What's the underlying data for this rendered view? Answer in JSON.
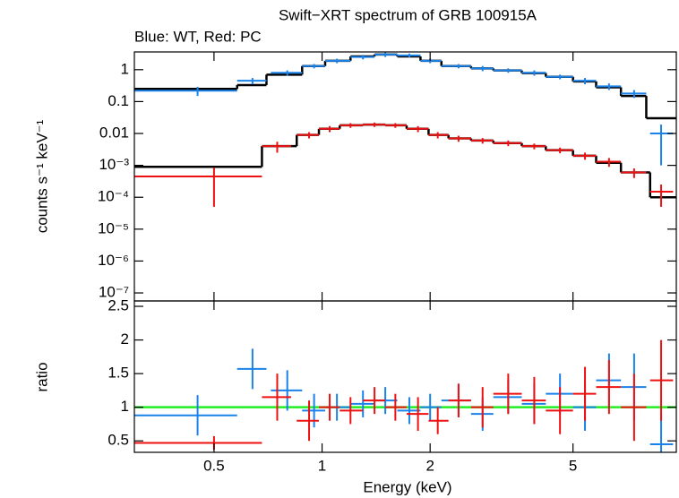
{
  "chart_data": [
    {
      "type": "spectrum",
      "title": "Swift−XRT spectrum of GRB 100915A",
      "subtitle": "Blue: WT, Red: PC",
      "ylabel": "counts s⁻¹ keV⁻¹",
      "xscale": "log",
      "yscale": "log",
      "xlim": [
        0.3,
        9.7
      ],
      "ylim": [
        5.6e-08,
        3.6
      ],
      "yticks": [
        {
          "value": 1,
          "label": "1"
        },
        {
          "value": 0.1,
          "label": "0.1"
        },
        {
          "value": 0.01,
          "label": "0.01"
        },
        {
          "value": 0.001,
          "label": "10⁻³"
        },
        {
          "value": 0.0001,
          "label": "10⁻⁴"
        },
        {
          "value": 1e-05,
          "label": "10⁻⁵"
        },
        {
          "value": 1e-06,
          "label": "10⁻⁶"
        },
        {
          "value": 1e-07,
          "label": "10⁻⁷"
        }
      ],
      "series": [
        {
          "name": "WT",
          "color": "#1a82e8",
          "x": [
            0.45,
            0.64,
            0.8,
            0.95,
            1.1,
            1.3,
            1.5,
            1.75,
            2.0,
            2.4,
            2.8,
            3.3,
            3.9,
            4.6,
            5.4,
            6.3,
            7.4,
            8.8
          ],
          "xlo": [
            0.3,
            0.58,
            0.72,
            0.88,
            1.02,
            1.2,
            1.4,
            1.62,
            1.88,
            2.15,
            2.6,
            3.0,
            3.6,
            4.2,
            5.0,
            5.8,
            6.8,
            8.2
          ],
          "xhi": [
            0.58,
            0.7,
            0.88,
            1.02,
            1.2,
            1.4,
            1.62,
            1.88,
            2.15,
            2.6,
            3.0,
            3.6,
            4.2,
            5.0,
            5.8,
            6.8,
            8.0,
            9.5
          ],
          "values": [
            0.22,
            0.45,
            0.8,
            1.3,
            1.9,
            2.5,
            3.0,
            2.8,
            1.9,
            1.3,
            1.1,
            0.95,
            0.8,
            0.6,
            0.45,
            0.3,
            0.18,
            0.01
          ],
          "errors": [
            0.07,
            0.1,
            0.15,
            0.2,
            0.3,
            0.4,
            0.5,
            0.4,
            0.3,
            0.2,
            0.2,
            0.15,
            0.15,
            0.1,
            0.1,
            0.07,
            0.05,
            0.009
          ]
        },
        {
          "name": "PC",
          "color": "#ee1111",
          "x": [
            0.5,
            0.75,
            0.92,
            1.05,
            1.2,
            1.4,
            1.6,
            1.85,
            2.1,
            2.4,
            2.8,
            3.3,
            3.9,
            4.6,
            5.4,
            6.3,
            7.4,
            8.8
          ],
          "xlo": [
            0.3,
            0.68,
            0.85,
            0.98,
            1.12,
            1.3,
            1.5,
            1.72,
            1.98,
            2.25,
            2.6,
            3.0,
            3.6,
            4.2,
            5.0,
            5.8,
            6.8,
            8.2
          ],
          "xhi": [
            0.68,
            0.82,
            0.98,
            1.12,
            1.3,
            1.5,
            1.72,
            1.98,
            2.25,
            2.6,
            3.0,
            3.6,
            4.2,
            5.0,
            5.8,
            6.8,
            8.0,
            9.5
          ],
          "values": [
            0.00045,
            0.004,
            0.009,
            0.014,
            0.018,
            0.019,
            0.018,
            0.014,
            0.009,
            0.007,
            0.006,
            0.005,
            0.004,
            0.003,
            0.002,
            0.0013,
            0.0006,
            0.00015
          ],
          "errors": [
            0.0004,
            0.0015,
            0.002,
            0.003,
            0.003,
            0.003,
            0.003,
            0.003,
            0.002,
            0.0015,
            0.0012,
            0.001,
            0.0008,
            0.0006,
            0.0005,
            0.0004,
            0.0002,
            0.0001
          ]
        }
      ],
      "models": [
        {
          "color": "#000000",
          "bins": [
            0.3,
            0.58,
            0.7,
            0.88,
            1.02,
            1.2,
            1.4,
            1.62,
            1.88,
            2.15,
            2.6,
            3.0,
            3.6,
            4.2,
            5.0,
            5.8,
            6.8,
            8.0,
            9.7
          ],
          "values": [
            0.25,
            0.33,
            0.7,
            1.3,
            1.9,
            2.6,
            3.0,
            2.6,
            1.9,
            1.3,
            1.1,
            0.95,
            0.78,
            0.6,
            0.43,
            0.28,
            0.15,
            0.03
          ]
        },
        {
          "color": "#000000",
          "bins": [
            0.3,
            0.68,
            0.85,
            0.98,
            1.12,
            1.3,
            1.5,
            1.72,
            1.98,
            2.25,
            2.6,
            3.0,
            3.6,
            4.2,
            5.0,
            5.8,
            6.8,
            8.2,
            9.7
          ],
          "values": [
            0.0009,
            0.004,
            0.009,
            0.014,
            0.018,
            0.019,
            0.018,
            0.014,
            0.009,
            0.007,
            0.006,
            0.005,
            0.004,
            0.003,
            0.002,
            0.0012,
            0.0006,
            0.0001
          ]
        }
      ]
    },
    {
      "type": "ratio",
      "xlabel": "Energy (keV)",
      "ylabel": "ratio",
      "xscale": "log",
      "xlim": [
        0.3,
        9.7
      ],
      "ylim": [
        0.33,
        2.58
      ],
      "xticks": [
        0.5,
        1,
        2,
        5
      ],
      "yticks": [
        0.5,
        1,
        1.5,
        2,
        2.5
      ],
      "reference_line": 1,
      "reference_color": "#22ee22",
      "series": [
        {
          "name": "WT",
          "color": "#1a82e8",
          "x": [
            0.45,
            0.64,
            0.8,
            0.95,
            1.1,
            1.3,
            1.5,
            1.75,
            2.0,
            2.4,
            2.8,
            3.3,
            3.9,
            4.6,
            5.4,
            6.3,
            7.4,
            8.8
          ],
          "xlo": [
            0.3,
            0.58,
            0.72,
            0.88,
            1.02,
            1.2,
            1.4,
            1.62,
            1.88,
            2.15,
            2.6,
            3.0,
            3.6,
            4.2,
            5.0,
            5.8,
            6.8,
            8.2
          ],
          "xhi": [
            0.58,
            0.7,
            0.88,
            1.02,
            1.2,
            1.4,
            1.62,
            1.88,
            2.15,
            2.6,
            3.0,
            3.6,
            4.2,
            5.0,
            5.8,
            6.8,
            8.0,
            9.5
          ],
          "values": [
            0.88,
            1.57,
            1.25,
            0.95,
            1.0,
            1.05,
            1.1,
            0.95,
            1.0,
            1.1,
            0.9,
            1.15,
            1.05,
            1.2,
            1.0,
            1.4,
            1.3,
            0.45
          ],
          "errors": [
            0.3,
            0.3,
            0.3,
            0.25,
            0.2,
            0.2,
            0.2,
            0.2,
            0.2,
            0.25,
            0.25,
            0.25,
            0.3,
            0.3,
            0.35,
            0.4,
            0.5,
            0.45
          ]
        },
        {
          "name": "PC",
          "color": "#ee1111",
          "x": [
            0.5,
            0.75,
            0.92,
            1.05,
            1.2,
            1.4,
            1.6,
            1.85,
            2.1,
            2.4,
            2.8,
            3.3,
            3.9,
            4.6,
            5.4,
            6.3,
            7.4,
            8.8
          ],
          "xlo": [
            0.3,
            0.68,
            0.85,
            0.98,
            1.12,
            1.3,
            1.5,
            1.72,
            1.98,
            2.25,
            2.6,
            3.0,
            3.6,
            4.2,
            5.0,
            5.8,
            6.8,
            8.2
          ],
          "xhi": [
            0.68,
            0.82,
            0.98,
            1.12,
            1.3,
            1.5,
            1.72,
            1.98,
            2.25,
            2.6,
            3.0,
            3.6,
            4.2,
            5.0,
            5.8,
            6.8,
            8.0,
            9.5
          ],
          "values": [
            0.47,
            1.15,
            0.8,
            1.0,
            0.95,
            1.1,
            1.0,
            0.9,
            0.8,
            1.1,
            1.0,
            1.2,
            1.1,
            0.95,
            1.2,
            1.3,
            1.0,
            1.4
          ],
          "errors": [
            0.1,
            0.35,
            0.3,
            0.2,
            0.2,
            0.2,
            0.2,
            0.25,
            0.2,
            0.25,
            0.3,
            0.3,
            0.35,
            0.35,
            0.4,
            0.4,
            0.5,
            0.6
          ]
        }
      ]
    }
  ]
}
